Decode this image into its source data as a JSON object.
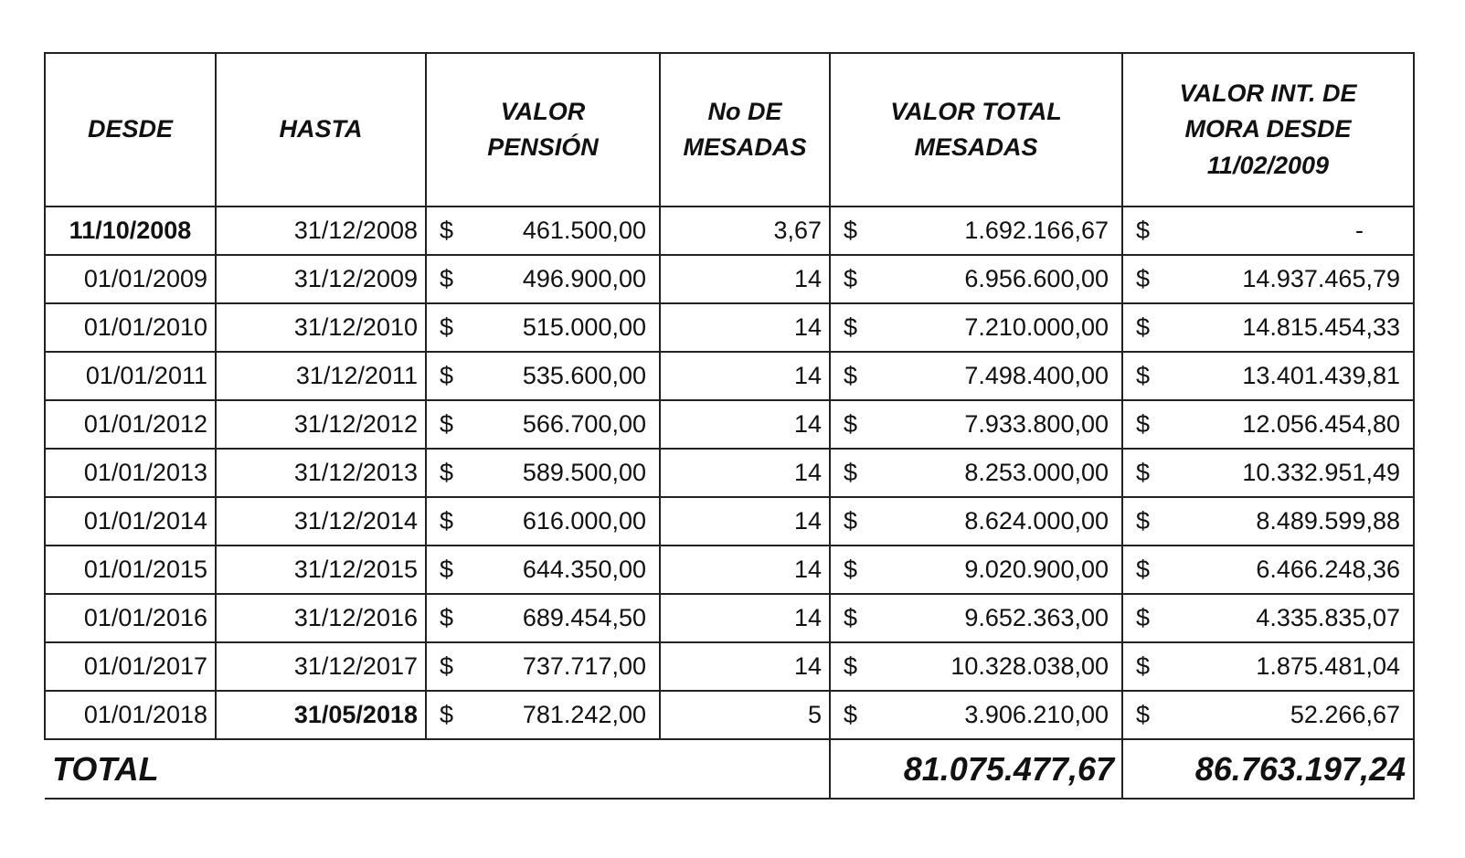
{
  "table": {
    "header": [
      "DESDE",
      "HASTA",
      "VALOR PENSIÓN",
      "No DE MESADAS",
      "VALOR TOTAL MESADAS",
      "VALOR INT. DE MORA DESDE 11/02/2009"
    ],
    "rows": [
      [
        "11/10/2008",
        "31/12/2008",
        "$",
        "461.500,00",
        "3,67",
        "$",
        "1.692.166,67",
        "$",
        "-"
      ],
      [
        "01/01/2009",
        "31/12/2009",
        "$",
        "496.900,00",
        "14",
        "$",
        "6.956.600,00",
        "$",
        "14.937.465,79"
      ],
      [
        "01/01/2010",
        "31/12/2010",
        "$",
        "515.000,00",
        "14",
        "$",
        "7.210.000,00",
        "$",
        "14.815.454,33"
      ],
      [
        "01/01/2011",
        "31/12/2011",
        "$",
        "535.600,00",
        "14",
        "$",
        "7.498.400,00",
        "$",
        "13.401.439,81"
      ],
      [
        "01/01/2012",
        "31/12/2012",
        "$",
        "566.700,00",
        "14",
        "$",
        "7.933.800,00",
        "$",
        "12.056.454,80"
      ],
      [
        "01/01/2013",
        "31/12/2013",
        "$",
        "589.500,00",
        "14",
        "$",
        "8.253.000,00",
        "$",
        "10.332.951,49"
      ],
      [
        "01/01/2014",
        "31/12/2014",
        "$",
        "616.000,00",
        "14",
        "$",
        "8.624.000,00",
        "$",
        "8.489.599,88"
      ],
      [
        "01/01/2015",
        "31/12/2015",
        "$",
        "644.350,00",
        "14",
        "$",
        "9.020.900,00",
        "$",
        "6.466.248,36"
      ],
      [
        "01/01/2016",
        "31/12/2016",
        "$",
        "689.454,50",
        "14",
        "$",
        "9.652.363,00",
        "$",
        "4.335.835,07"
      ],
      [
        "01/01/2017",
        "31/12/2017",
        "$",
        "737.717,00",
        "14",
        "$",
        "10.328.038,00",
        "$",
        "1.875.481,04"
      ],
      [
        "01/01/2018",
        "31/05/2018",
        "$",
        "781.242,00",
        "5",
        "$",
        "3.906.210,00",
        "$",
        "52.266,67"
      ]
    ],
    "total": [
      "TOTAL",
      "81.075.477,67",
      "86.763.197,24"
    ]
  }
}
